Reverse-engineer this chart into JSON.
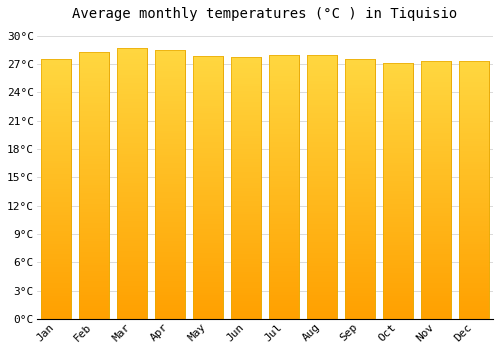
{
  "months": [
    "Jan",
    "Feb",
    "Mar",
    "Apr",
    "May",
    "Jun",
    "Jul",
    "Aug",
    "Sep",
    "Oct",
    "Nov",
    "Dec"
  ],
  "temperatures": [
    27.5,
    28.3,
    28.7,
    28.5,
    27.9,
    27.7,
    28.0,
    28.0,
    27.5,
    27.1,
    27.3,
    27.3
  ],
  "bar_color_top": "#FFD54F",
  "bar_color_bottom": "#FFA000",
  "bar_edge_color": "#E8A800",
  "background_color": "#FFFFFF",
  "grid_color": "#CCCCCC",
  "title": "Average monthly temperatures (°C ) in Tiquisio",
  "title_fontsize": 10,
  "title_font": "monospace",
  "ylim": [
    0,
    31
  ],
  "ytick_labels": [
    "0°C",
    "3°C",
    "6°C",
    "9°C",
    "12°C",
    "15°C",
    "18°C",
    "21°C",
    "24°C",
    "27°C",
    "30°C"
  ],
  "ytick_values": [
    0,
    3,
    6,
    9,
    12,
    15,
    18,
    21,
    24,
    27,
    30
  ],
  "tick_font": "monospace",
  "tick_fontsize": 8,
  "bar_width": 0.8
}
